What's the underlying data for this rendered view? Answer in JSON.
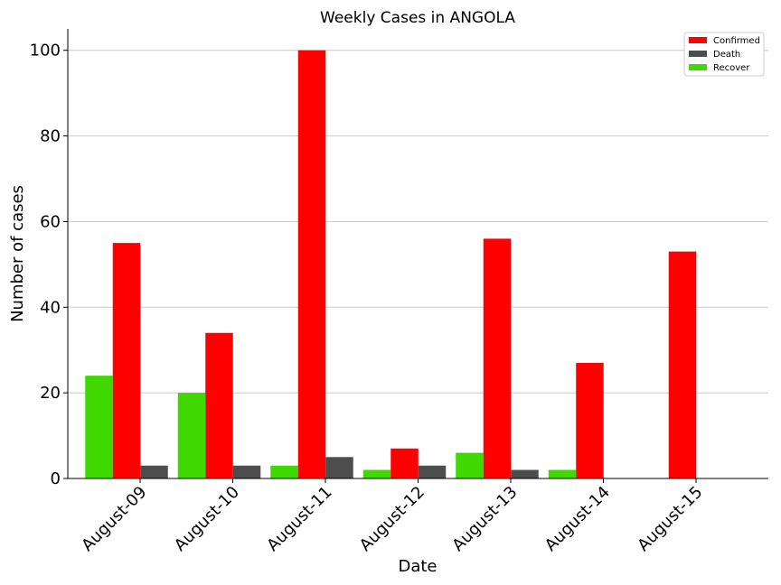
{
  "chart_data": {
    "type": "bar",
    "title": "Weekly Cases in ANGOLA",
    "xlabel": "Date",
    "ylabel": "Number of cases",
    "categories": [
      "August-09",
      "August-10",
      "August-11",
      "August-12",
      "August-13",
      "August-14",
      "August-15"
    ],
    "series": [
      {
        "name": "Recover",
        "color": "#3fd900",
        "values": [
          24,
          20,
          3,
          2,
          6,
          2,
          0
        ]
      },
      {
        "name": "Confirmed",
        "color": "#ff0000",
        "values": [
          55,
          34,
          100,
          7,
          56,
          27,
          53
        ]
      },
      {
        "name": "Death",
        "color": "#4d4d4d",
        "values": [
          3,
          3,
          5,
          3,
          2,
          0,
          0
        ]
      }
    ],
    "legend_order": [
      "Confirmed",
      "Death",
      "Recover"
    ],
    "legend_position": "top-right",
    "ylim": [
      0,
      105
    ],
    "yticks": [
      0,
      20,
      40,
      60,
      80,
      100
    ],
    "grid": "horizontal"
  }
}
